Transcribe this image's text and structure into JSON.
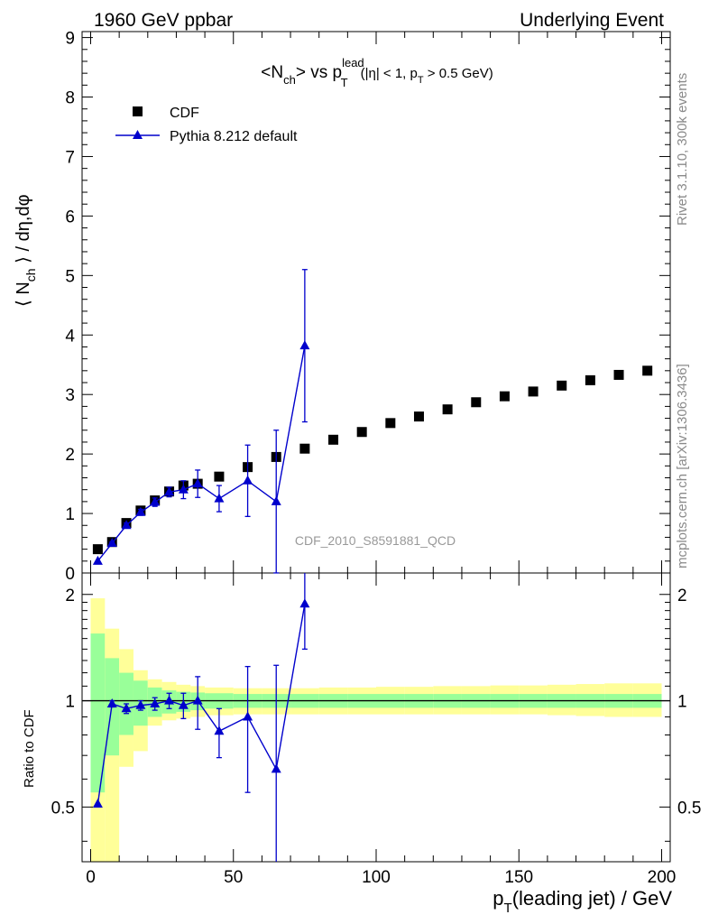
{
  "header": {
    "left": "1960 GeV ppbar",
    "right": "Underlying Event"
  },
  "side_text": {
    "rivet": "Rivet 3.1.10,  300k events",
    "mcplots": "mcplots.cern.ch [arXiv:1306.3436]"
  },
  "chart_data": [
    {
      "type": "scatter",
      "panel": "main",
      "title": "<N_ch> vs p_T^lead (|η| < 1, p_T > 0.5 GeV)",
      "title_parts": {
        "pre": "<N",
        "sub1": "ch",
        "mid": "> vs p",
        "sup": "lead",
        "sub2": "T",
        "cut": "(|η| < 1, p",
        "cut_sub": "T",
        "cut_end": " > 0.5 GeV)"
      },
      "ylabel": "⟨ N_ch ⟩ / dη,dφ",
      "ylabel_parts": {
        "a": "⟨ N",
        "sub": "ch",
        "b": " ⟩ / dη,dφ"
      },
      "xlim": [
        -3,
        203
      ],
      "ylim": [
        0,
        9.1
      ],
      "yticks": [
        "0",
        "1",
        "2",
        "3",
        "4",
        "5",
        "6",
        "7",
        "8",
        "9"
      ],
      "watermark": "CDF_2010_S8591881_QCD",
      "legend": {
        "position": "top-left",
        "entries": [
          "CDF",
          "Pythia 8.212 default"
        ]
      },
      "series": [
        {
          "name": "CDF",
          "marker": "square",
          "color": "#000000",
          "x": [
            2.5,
            7.5,
            12.5,
            17.5,
            22.5,
            27.5,
            32.5,
            37.5,
            45,
            55,
            65,
            75,
            85,
            95,
            105,
            115,
            125,
            135,
            145,
            155,
            165,
            175,
            185,
            195
          ],
          "y": [
            0.4,
            0.52,
            0.84,
            1.05,
            1.22,
            1.37,
            1.47,
            1.5,
            1.62,
            1.78,
            1.95,
            2.09,
            2.24,
            2.37,
            2.52,
            2.63,
            2.75,
            2.87,
            2.97,
            3.05,
            3.15,
            3.24,
            3.33,
            3.4
          ]
        },
        {
          "name": "Pythia 8.212 default",
          "marker": "triangle",
          "color": "#0000cc",
          "x": [
            2.5,
            7.5,
            12.5,
            17.5,
            22.5,
            27.5,
            32.5,
            37.5,
            45,
            55,
            65,
            75
          ],
          "y": [
            0.2,
            0.5,
            0.8,
            1.02,
            1.19,
            1.36,
            1.4,
            1.5,
            1.25,
            1.55,
            1.2,
            3.82
          ],
          "yerr": [
            0,
            0.02,
            0.04,
            0.05,
            0.07,
            0.08,
            0.15,
            0.23,
            0.22,
            0.6,
            1.2,
            1.28
          ]
        }
      ]
    },
    {
      "type": "scatter",
      "panel": "ratio",
      "ylabel": "Ratio to CDF",
      "xlabel": "p_T(leading jet) / GeV",
      "xlabel_parts": {
        "a": "p",
        "sub": "T",
        "b": "(leading jet) / GeV"
      },
      "xlim": [
        -3,
        203
      ],
      "ylim": [
        0.35,
        2.3
      ],
      "xticks": [
        "0",
        "50",
        "100",
        "150",
        "200"
      ],
      "yticks": [
        "0.5",
        "1",
        "2"
      ],
      "reference_line": 1,
      "bands": {
        "x_edges": [
          0,
          5,
          10,
          15,
          20,
          25,
          30,
          35,
          40,
          50,
          60,
          70,
          80,
          90,
          100,
          110,
          120,
          130,
          140,
          150,
          160,
          170,
          180,
          190,
          200
        ],
        "green_lo": [
          0.55,
          0.7,
          0.8,
          0.85,
          0.9,
          0.92,
          0.93,
          0.94,
          0.95,
          0.955,
          0.955,
          0.955,
          0.955,
          0.955,
          0.955,
          0.955,
          0.955,
          0.955,
          0.955,
          0.955,
          0.955,
          0.955,
          0.955,
          0.955
        ],
        "green_hi": [
          1.55,
          1.32,
          1.2,
          1.14,
          1.09,
          1.07,
          1.06,
          1.055,
          1.05,
          1.045,
          1.045,
          1.045,
          1.045,
          1.045,
          1.045,
          1.045,
          1.045,
          1.045,
          1.045,
          1.045,
          1.045,
          1.045,
          1.045,
          1.045
        ],
        "yellow_lo": [
          0.3,
          0.3,
          0.65,
          0.72,
          0.85,
          0.88,
          0.89,
          0.9,
          0.91,
          0.915,
          0.915,
          0.915,
          0.915,
          0.915,
          0.915,
          0.915,
          0.915,
          0.915,
          0.915,
          0.915,
          0.91,
          0.905,
          0.9,
          0.9
        ],
        "yellow_hi": [
          1.95,
          1.6,
          1.4,
          1.22,
          1.15,
          1.13,
          1.11,
          1.1,
          1.09,
          1.085,
          1.085,
          1.085,
          1.09,
          1.09,
          1.095,
          1.095,
          1.1,
          1.1,
          1.105,
          1.105,
          1.11,
          1.115,
          1.12,
          1.12
        ],
        "green_color": "#99ff99",
        "yellow_color": "#ffff99"
      },
      "series": [
        {
          "name": "Pythia 8.212 default",
          "marker": "triangle",
          "color": "#0000cc",
          "x": [
            2.5,
            7.5,
            12.5,
            17.5,
            22.5,
            27.5,
            32.5,
            37.5,
            45,
            55,
            65,
            75
          ],
          "y": [
            0.51,
            0.98,
            0.95,
            0.97,
            0.98,
            1.0,
            0.97,
            1.0,
            0.82,
            0.9,
            0.64,
            1.88
          ],
          "yerr": [
            0,
            0.02,
            0.03,
            0.03,
            0.04,
            0.05,
            0.08,
            0.17,
            0.13,
            0.35,
            0.62,
            0.48
          ]
        }
      ]
    }
  ]
}
